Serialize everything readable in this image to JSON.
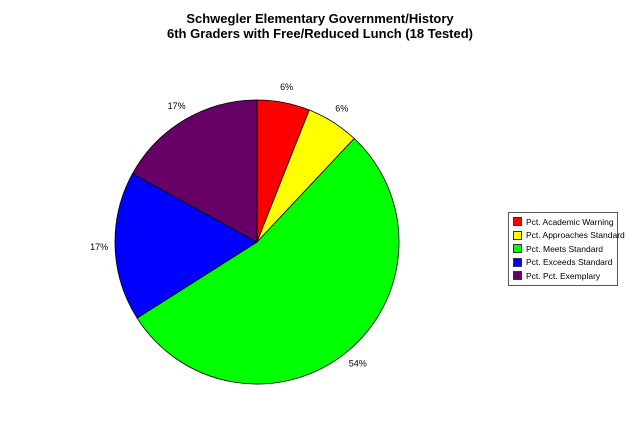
{
  "chart_data": {
    "type": "pie",
    "title_lines": [
      "Schwegler Elementary Government/History",
      "6th Graders with Free/Reduced Lunch (18 Tested)"
    ],
    "categories": [
      "Pct. Academic Warning",
      "Pct. Approaches Standard",
      "Pct. Meets Standard",
      "Pct. Exceeds Standard",
      "Pct. Pct. Exemplary"
    ],
    "values": [
      6,
      6,
      54,
      17,
      17
    ],
    "slice_labels": [
      "6%",
      "6%",
      "54%",
      "17%",
      "17%"
    ],
    "colors": [
      "#ff0000",
      "#ffff00",
      "#00ff00",
      "#0000ff",
      "#660066"
    ],
    "start_angle": "12 o'clock",
    "direction": "clockwise",
    "legend_position": "right"
  }
}
